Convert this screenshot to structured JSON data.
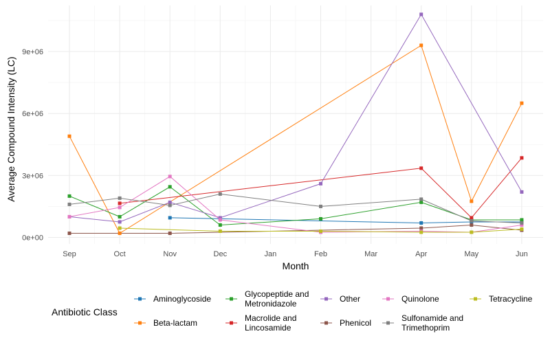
{
  "chart_data": {
    "type": "line",
    "xlabel": "Month",
    "ylabel": "Average Compound Intensity (LC)",
    "categories": [
      "Sep",
      "Oct",
      "Nov",
      "Dec",
      "Jan",
      "Feb",
      "Mar",
      "Apr",
      "May",
      "Jun"
    ],
    "ylim": [
      -200000,
      11000000
    ],
    "yticks": [
      0,
      3000000,
      6000000,
      9000000
    ],
    "ytick_labels": [
      "0e+00",
      "3e+06",
      "6e+06",
      "9e+06"
    ],
    "grid": true,
    "legend": {
      "title": "Antibiotic Class",
      "position": "bottom"
    },
    "series": [
      {
        "name": "Aminoglycoside",
        "color": "#1f77b4",
        "points": [
          [
            "Nov",
            950000
          ],
          [
            "Dec",
            900000
          ],
          [
            "Apr",
            700000
          ],
          [
            "May",
            750000
          ],
          [
            "Jun",
            750000
          ]
        ]
      },
      {
        "name": "Beta-lactam",
        "color": "#ff7f0e",
        "points": [
          [
            "Sep",
            4900000
          ],
          [
            "Oct",
            200000
          ],
          [
            "Apr",
            9300000
          ],
          [
            "May",
            1750000
          ],
          [
            "Jun",
            6500000
          ]
        ]
      },
      {
        "name": "Glycopeptide and\nMetronidazole",
        "color": "#2ca02c",
        "points": [
          [
            "Sep",
            2000000
          ],
          [
            "Oct",
            1000000
          ],
          [
            "Nov",
            2450000
          ],
          [
            "Dec",
            600000
          ],
          [
            "Feb",
            900000
          ],
          [
            "Apr",
            1700000
          ],
          [
            "May",
            850000
          ],
          [
            "Jun",
            850000
          ]
        ]
      },
      {
        "name": "Macrolide and\nLincosamide",
        "color": "#d62728",
        "points": [
          [
            "Oct",
            1650000
          ],
          [
            "Apr",
            3350000
          ],
          [
            "May",
            950000
          ],
          [
            "Jun",
            3850000
          ]
        ]
      },
      {
        "name": "Other",
        "color": "#9467bd",
        "points": [
          [
            "Sep",
            1000000
          ],
          [
            "Oct",
            750000
          ],
          [
            "Nov",
            1700000
          ],
          [
            "Dec",
            950000
          ],
          [
            "Feb",
            2600000
          ],
          [
            "Apr",
            10800000
          ],
          [
            "Jun",
            2200000
          ]
        ]
      },
      {
        "name": "Phenicol",
        "color": "#8c564b",
        "points": [
          [
            "Sep",
            200000
          ],
          [
            "Nov",
            200000
          ],
          [
            "Apr",
            450000
          ],
          [
            "May",
            600000
          ],
          [
            "Jun",
            350000
          ]
        ]
      },
      {
        "name": "Quinolone",
        "color": "#e377c2",
        "points": [
          [
            "Sep",
            1000000
          ],
          [
            "Oct",
            1450000
          ],
          [
            "Nov",
            2950000
          ],
          [
            "Dec",
            850000
          ],
          [
            "Feb",
            250000
          ],
          [
            "Apr",
            300000
          ],
          [
            "May",
            250000
          ],
          [
            "Jun",
            600000
          ]
        ]
      },
      {
        "name": "Sulfonamide and\nTrimethoprim",
        "color": "#7f7f7f",
        "points": [
          [
            "Sep",
            1600000
          ],
          [
            "Oct",
            1900000
          ],
          [
            "Nov",
            1550000
          ],
          [
            "Dec",
            2100000
          ],
          [
            "Feb",
            1500000
          ],
          [
            "Apr",
            1850000
          ],
          [
            "May",
            800000
          ],
          [
            "Jun",
            700000
          ]
        ]
      },
      {
        "name": "Tetracycline",
        "color": "#bcbd22",
        "points": [
          [
            "Oct",
            450000
          ],
          [
            "Dec",
            300000
          ],
          [
            "Feb",
            300000
          ],
          [
            "Apr",
            250000
          ],
          [
            "May",
            250000
          ],
          [
            "Jun",
            400000
          ]
        ]
      }
    ]
  }
}
